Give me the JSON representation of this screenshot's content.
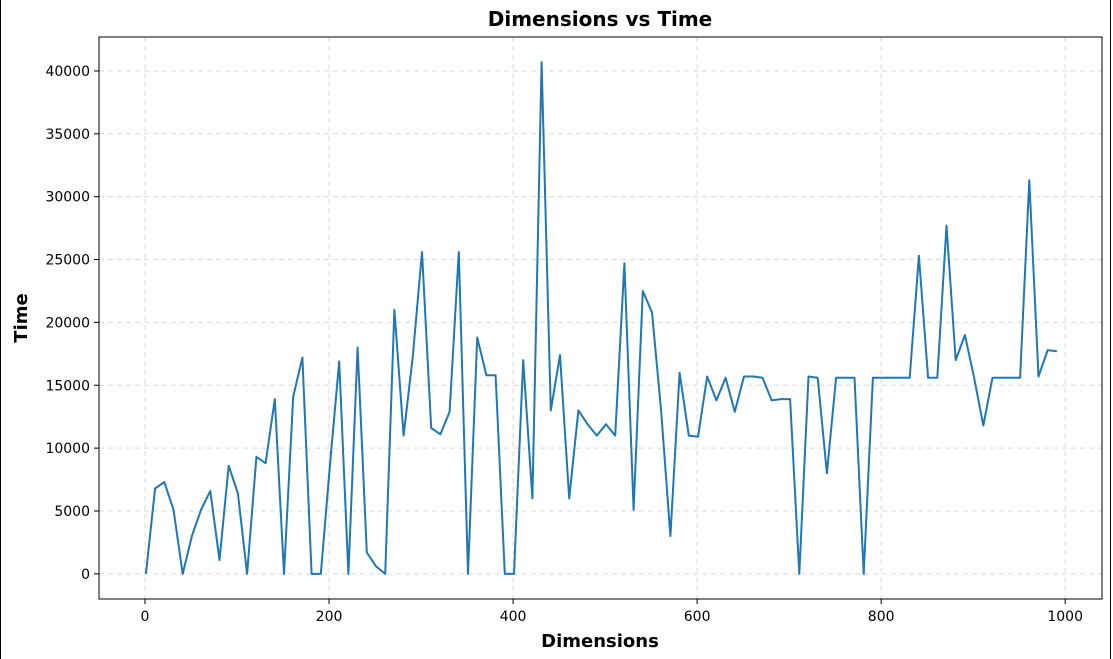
{
  "chart_data": {
    "type": "line",
    "title": "Dimensions vs Time",
    "xlabel": "Dimensions",
    "ylabel": "Time",
    "xlim": [
      -50,
      1040
    ],
    "ylim": [
      -2000,
      42700
    ],
    "xticks": [
      0,
      200,
      400,
      600,
      800,
      1000
    ],
    "yticks": [
      0,
      5000,
      10000,
      15000,
      20000,
      25000,
      30000,
      35000,
      40000
    ],
    "grid": true,
    "color": "#1f77b4",
    "x": [
      1,
      11,
      21,
      31,
      41,
      51,
      61,
      71,
      81,
      91,
      101,
      111,
      121,
      131,
      141,
      151,
      161,
      171,
      181,
      191,
      201,
      211,
      221,
      231,
      241,
      251,
      261,
      271,
      281,
      291,
      301,
      311,
      321,
      331,
      341,
      351,
      361,
      371,
      381,
      391,
      401,
      411,
      421,
      431,
      441,
      451,
      461,
      471,
      481,
      491,
      501,
      511,
      521,
      531,
      541,
      551,
      561,
      571,
      581,
      591,
      601,
      611,
      621,
      631,
      641,
      651,
      661,
      671,
      681,
      691,
      701,
      711,
      721,
      731,
      741,
      751,
      761,
      771,
      781,
      791,
      801,
      811,
      821,
      831,
      841,
      851,
      861,
      871,
      881,
      891,
      901,
      911,
      921,
      931,
      941,
      951,
      961,
      971,
      981,
      991
    ],
    "values": [
      0,
      6800,
      7300,
      5100,
      0,
      3000,
      5100,
      6600,
      1100,
      8600,
      6400,
      0,
      9300,
      8800,
      13900,
      0,
      14100,
      17200,
      0,
      0,
      8700,
      16900,
      0,
      18000,
      1700,
      600,
      0,
      21000,
      11000,
      17300,
      25600,
      11600,
      11100,
      12900,
      25600,
      0,
      18800,
      15800,
      15800,
      0,
      0,
      17000,
      6000,
      40700,
      13000,
      17400,
      6000,
      13000,
      11900,
      11000,
      11900,
      11000,
      24700,
      5100,
      22500,
      20800,
      12900,
      3000,
      16000,
      11000,
      10900,
      15700,
      13800,
      15600,
      12900,
      15700,
      15700,
      15600,
      13800,
      13900,
      13900,
      0,
      15700,
      15600,
      8000,
      15600,
      15600,
      15600,
      0,
      15600,
      15600,
      15600,
      15600,
      15600,
      25300,
      15600,
      15600,
      27700,
      17000,
      19000,
      15600,
      11800,
      15600,
      15600,
      15600,
      15600,
      31300,
      15700,
      17800,
      17700
    ]
  }
}
